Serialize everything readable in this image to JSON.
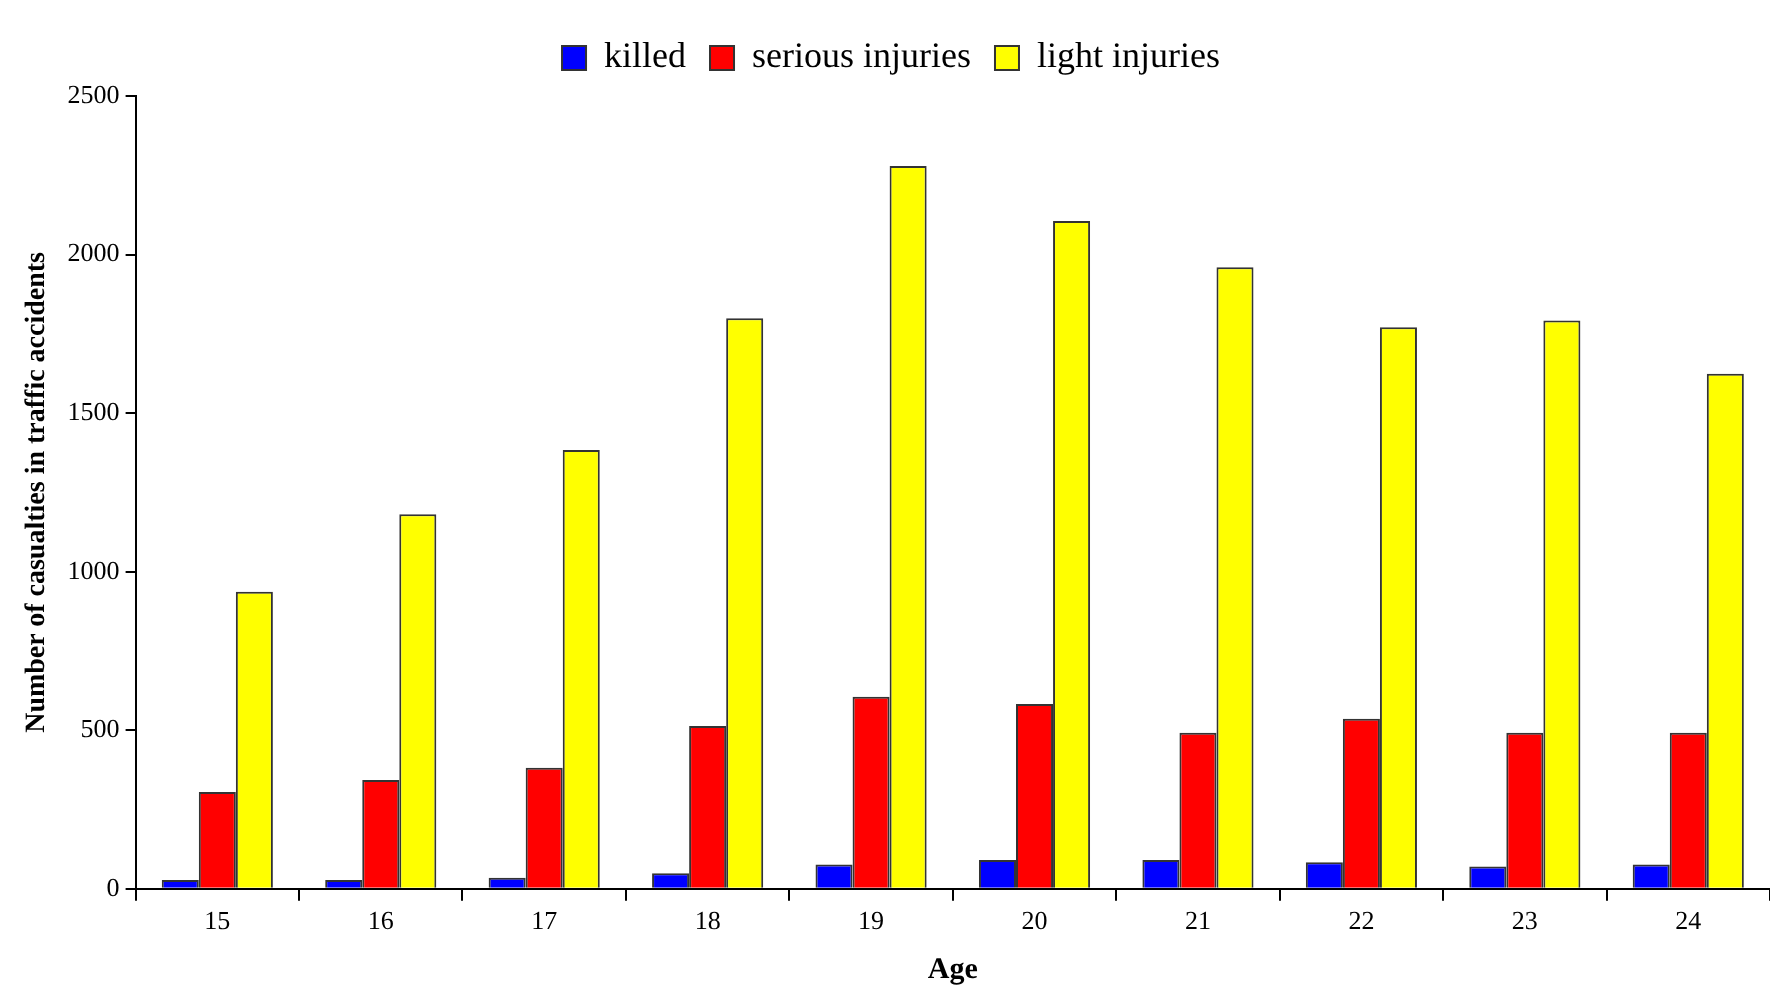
{
  "chart_data": {
    "type": "bar",
    "xlabel": "Age",
    "ylabel": "Number of casualties in traffic accidents",
    "categories": [
      "15",
      "16",
      "17",
      "18",
      "19",
      "20",
      "21",
      "22",
      "23",
      "24"
    ],
    "series": [
      {
        "name": "killed",
        "color": "#0000ff",
        "values": [
          28,
          28,
          35,
          49,
          77,
          91,
          91,
          84,
          70,
          77
        ]
      },
      {
        "name": "serious injuries",
        "color": "#ff0000",
        "values": [
          305,
          343,
          382,
          513,
          606,
          583,
          492,
          536,
          492,
          492
        ]
      },
      {
        "name": "light injuries",
        "color": "#ffff00",
        "values": [
          937,
          1181,
          1384,
          1799,
          2279,
          2106,
          1960,
          1771,
          1792,
          1624
        ]
      }
    ],
    "ylim": [
      0,
      2500
    ],
    "yticks": [
      0,
      500,
      1000,
      1500,
      2000,
      2500
    ],
    "grid": false,
    "legend": "top"
  }
}
